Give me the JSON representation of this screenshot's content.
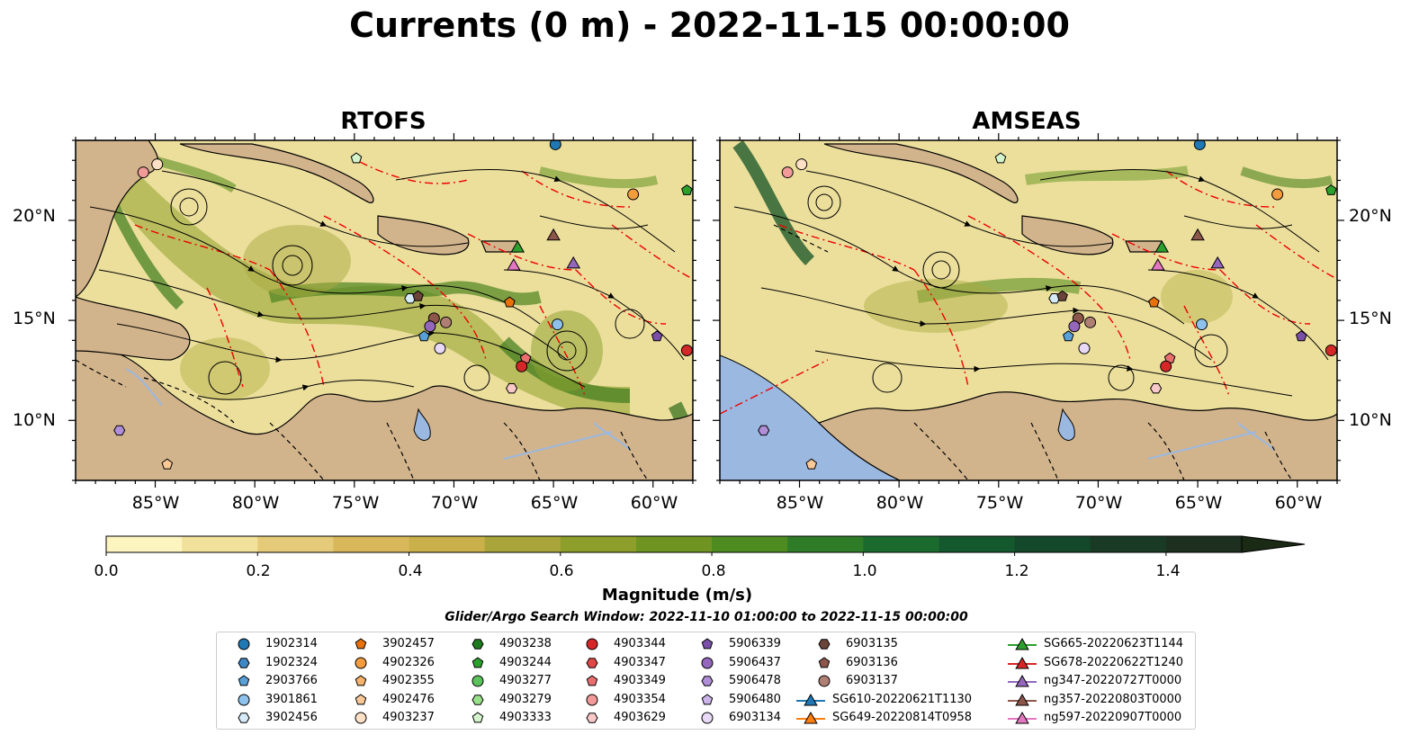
{
  "title": "Currents (0 m) - 2022-11-15 00:00:00",
  "panels": [
    {
      "id": "rtofs",
      "title": "RTOFS"
    },
    {
      "id": "amseas",
      "title": "AMSEAS"
    }
  ],
  "axes": {
    "lat_labels": [
      "20°N",
      "15°N",
      "10°N"
    ],
    "lon_labels": [
      "85°W",
      "80°W",
      "75°W",
      "70°W",
      "65°W",
      "60°W"
    ],
    "lon_range": [
      -89,
      -58
    ],
    "lat_range": [
      7,
      24
    ]
  },
  "colorbar": {
    "label": "Magnitude (m/s)",
    "ticks": [
      "0.0",
      "0.2",
      "0.4",
      "0.6",
      "0.8",
      "1.0",
      "1.2",
      "1.4"
    ],
    "range": [
      0,
      1.5
    ],
    "extend": "max"
  },
  "search_window": "Glider/Argo Search Window: 2022-11-10 01:00:00 to 2022-11-15 00:00:00",
  "legend": [
    {
      "label": "1902314",
      "marker": "circle",
      "color": "#1f77b4"
    },
    {
      "label": "1902324",
      "marker": "hexagon",
      "color": "#3f88c5"
    },
    {
      "label": "2903766",
      "marker": "pentagon",
      "color": "#5aa0d8"
    },
    {
      "label": "3901861",
      "marker": "circle",
      "color": "#8ec2ec"
    },
    {
      "label": "3902456",
      "marker": "hexagon",
      "color": "#d6eaf8"
    },
    {
      "label": "3902457",
      "marker": "pentagon",
      "color": "#e8710a"
    },
    {
      "label": "4902326",
      "marker": "circle",
      "color": "#f39c3d"
    },
    {
      "label": "4902355",
      "marker": "pentagon",
      "color": "#f7b26b"
    },
    {
      "label": "4902476",
      "marker": "pentagon",
      "color": "#fac896"
    },
    {
      "label": "4903237",
      "marker": "circle",
      "color": "#fde0c5"
    },
    {
      "label": "4903238",
      "marker": "hexagon",
      "color": "#1e7b1e"
    },
    {
      "label": "4903244",
      "marker": "pentagon",
      "color": "#2ca02c"
    },
    {
      "label": "4903277",
      "marker": "circle",
      "color": "#5cc25c"
    },
    {
      "label": "4903279",
      "marker": "hexagon",
      "color": "#98df8a"
    },
    {
      "label": "4903333",
      "marker": "pentagon",
      "color": "#d4f5cc"
    },
    {
      "label": "4903344",
      "marker": "circle",
      "color": "#d62728"
    },
    {
      "label": "4903347",
      "marker": "hexagon",
      "color": "#e04848"
    },
    {
      "label": "4903349",
      "marker": "pentagon",
      "color": "#ea6e6e"
    },
    {
      "label": "4903354",
      "marker": "circle",
      "color": "#f29a9a"
    },
    {
      "label": "4903629",
      "marker": "hexagon",
      "color": "#f9c8c8"
    },
    {
      "label": "5906339",
      "marker": "pentagon",
      "color": "#7b4fa8"
    },
    {
      "label": "5906437",
      "marker": "circle",
      "color": "#9467bd"
    },
    {
      "label": "5906478",
      "marker": "hexagon",
      "color": "#b08ed8"
    },
    {
      "label": "5906480",
      "marker": "pentagon",
      "color": "#cdb5ea"
    },
    {
      "label": "6903134",
      "marker": "circle",
      "color": "#e8d9f7"
    },
    {
      "label": "6903135",
      "marker": "hexagon",
      "color": "#6b4339"
    },
    {
      "label": "6903136",
      "marker": "pentagon",
      "color": "#8c564b"
    },
    {
      "label": "6903137",
      "marker": "circle",
      "color": "#b07f74"
    },
    {
      "label": "SG610-20220621T1130",
      "marker": "triangle-line",
      "color": "#1f77b4"
    },
    {
      "label": "SG649-20220814T0958",
      "marker": "triangle-line",
      "color": "#ff7f0e"
    },
    {
      "label": "SG665-20220623T1144",
      "marker": "triangle-line",
      "color": "#2ca02c"
    },
    {
      "label": "SG678-20220622T1240",
      "marker": "triangle-line",
      "color": "#d62728"
    },
    {
      "label": "ng347-20220727T0000",
      "marker": "triangle-line",
      "color": "#9467bd"
    },
    {
      "label": "ng357-20220803T0000",
      "marker": "triangle-line",
      "color": "#8c564b"
    },
    {
      "label": "ng597-20220907T0000",
      "marker": "triangle-line",
      "color": "#e377c2"
    }
  ],
  "observations": [
    {
      "lon": -85.6,
      "lat": 22.4,
      "color": "#f29a9a",
      "marker": "circle"
    },
    {
      "lon": -84.9,
      "lat": 22.8,
      "color": "#fde0c5",
      "marker": "circle"
    },
    {
      "lon": -74.9,
      "lat": 23.1,
      "color": "#d4f5cc",
      "marker": "pentagon"
    },
    {
      "lon": -64.9,
      "lat": 23.8,
      "color": "#1f77b4",
      "marker": "circle"
    },
    {
      "lon": -61.0,
      "lat": 21.3,
      "color": "#f39c3d",
      "marker": "circle"
    },
    {
      "lon": -58.3,
      "lat": 21.5,
      "color": "#2ca02c",
      "marker": "pentagon"
    },
    {
      "lon": -66.8,
      "lat": 18.6,
      "color": "#2ca02c",
      "marker": "triangle"
    },
    {
      "lon": -65.0,
      "lat": 19.2,
      "color": "#8c564b",
      "marker": "triangle"
    },
    {
      "lon": -67.0,
      "lat": 17.7,
      "color": "#e377c2",
      "marker": "triangle"
    },
    {
      "lon": -64.0,
      "lat": 17.8,
      "color": "#9467bd",
      "marker": "triangle"
    },
    {
      "lon": -67.2,
      "lat": 15.9,
      "color": "#e8710a",
      "marker": "pentagon"
    },
    {
      "lon": -72.2,
      "lat": 16.1,
      "color": "#d6eaf8",
      "marker": "hexagon"
    },
    {
      "lon": -71.8,
      "lat": 16.2,
      "color": "#6b4339",
      "marker": "pentagon"
    },
    {
      "lon": -71.0,
      "lat": 15.1,
      "color": "#8c564b",
      "marker": "circle"
    },
    {
      "lon": -71.2,
      "lat": 14.7,
      "color": "#9467bd",
      "marker": "circle"
    },
    {
      "lon": -70.4,
      "lat": 14.9,
      "color": "#b07f74",
      "marker": "circle"
    },
    {
      "lon": -71.5,
      "lat": 14.2,
      "color": "#5aa0d8",
      "marker": "pentagon"
    },
    {
      "lon": -70.7,
      "lat": 13.6,
      "color": "#e8d9f7",
      "marker": "circle"
    },
    {
      "lon": -64.8,
      "lat": 14.8,
      "color": "#8ec2ec",
      "marker": "circle"
    },
    {
      "lon": -59.8,
      "lat": 14.2,
      "color": "#7b4fa8",
      "marker": "pentagon"
    },
    {
      "lon": -58.3,
      "lat": 13.5,
      "color": "#d62728",
      "marker": "circle"
    },
    {
      "lon": -66.4,
      "lat": 13.1,
      "color": "#ea6e6e",
      "marker": "pentagon"
    },
    {
      "lon": -66.6,
      "lat": 12.7,
      "color": "#d62728",
      "marker": "circle"
    },
    {
      "lon": -67.1,
      "lat": 11.6,
      "color": "#f9c8c8",
      "marker": "hexagon"
    },
    {
      "lon": -86.8,
      "lat": 9.5,
      "color": "#b08ed8",
      "marker": "hexagon"
    },
    {
      "lon": -84.4,
      "lat": 7.8,
      "color": "#fac896",
      "marker": "pentagon"
    }
  ]
}
